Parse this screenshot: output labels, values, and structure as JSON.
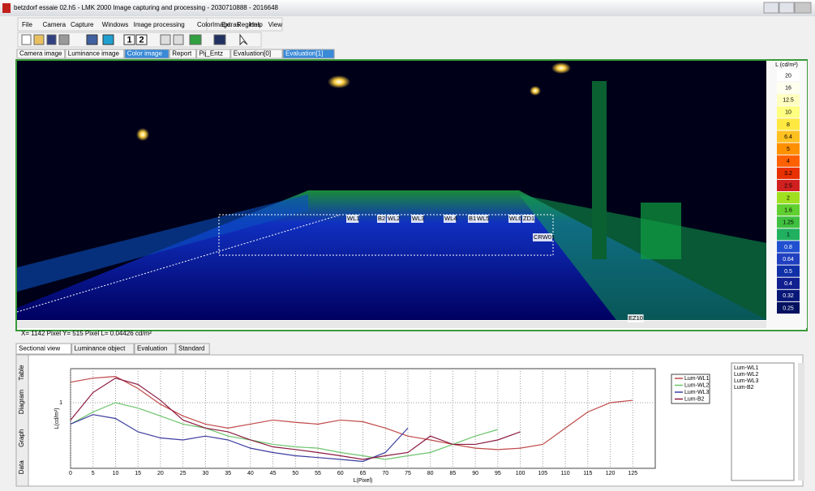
{
  "window": {
    "title": "betzdorf essaie 02.h5 - LMK 2000 Image capturing and processing - 2030710888 - 2016648"
  },
  "menu": [
    "File",
    "Camera",
    "Capture",
    "Windows",
    "Image processing",
    "Color",
    "Extras",
    "Help",
    "Image",
    "Regions",
    "View"
  ],
  "toolbar": {
    "buttons": [
      "1",
      "2"
    ]
  },
  "image_tabs": [
    "Camera image",
    "Luminance image",
    "Color image",
    "Report",
    "Pij_Entz",
    "Evaluation[0]",
    "Evaluation[1]"
  ],
  "image": {
    "region_labels": [
      "WL1",
      "B2",
      "WL2",
      "WL3",
      "WL4",
      "B1",
      "WL5",
      "WL6",
      "ZD1",
      "CRW01",
      "EZ10"
    ]
  },
  "scale": {
    "title": "L (cd/m²)",
    "labels": [
      20,
      16,
      12.5,
      10,
      8,
      6.4,
      5,
      4,
      3.2,
      2.5,
      2,
      1.6,
      1.25,
      1,
      0.8,
      0.64,
      0.5,
      0.4,
      0.32,
      0.25
    ]
  },
  "status": "X= 1142  Pixel  Y= 515 Pixel  L= 0.04426  cd/m²",
  "bottom_tabs": [
    "Sectional view",
    "Luminance object",
    "Evaluation",
    "Standard"
  ],
  "side_tabs": [
    "Table",
    "Diagram",
    "Graph",
    "Data"
  ],
  "chart_data": {
    "type": "line",
    "xlabel": "L(Pixel)",
    "ylabel": "L(cd/m²)",
    "x": [
      0,
      5,
      10,
      15,
      20,
      25,
      30,
      35,
      40,
      45,
      50,
      55,
      60,
      65,
      70,
      75,
      80,
      85,
      90,
      95,
      100,
      105,
      110,
      115,
      120,
      125
    ],
    "xlim": [
      0,
      130
    ],
    "xticks": [
      0,
      5,
      10,
      15,
      20,
      25,
      30,
      35,
      40,
      45,
      50,
      55,
      60,
      65,
      70,
      75,
      80,
      85,
      90,
      95,
      100,
      105,
      110,
      115,
      120,
      125
    ],
    "ylim": [
      0.12,
      3
    ],
    "yticks": [
      1
    ],
    "log_y": true,
    "grid": true,
    "series": [
      {
        "name": "Lum-WL1",
        "color": "#c04848",
        "values": [
          1.94,
          2.21,
          2.33,
          1.58,
          0.95,
          0.65,
          0.5,
          0.44,
          0.5,
          0.57,
          0.53,
          0.5,
          0.57,
          0.54,
          0.44,
          0.34,
          0.3,
          0.26,
          0.23,
          0.22,
          0.23,
          0.26,
          0.44,
          0.74,
          1,
          1.08
        ]
      },
      {
        "name": "Lum-WL2",
        "color": "#6cc46c",
        "values": [
          0.5,
          0.74,
          1,
          0.84,
          0.65,
          0.5,
          0.44,
          0.34,
          0.3,
          0.26,
          0.24,
          0.23,
          0.2,
          0.18,
          0.16,
          0.18,
          0.2,
          0.26,
          0.34,
          0.42,
          null,
          null,
          null,
          null,
          null,
          null
        ]
      },
      {
        "name": "Lum-WL3",
        "color": "#3c3ca0",
        "values": [
          0.5,
          0.68,
          0.6,
          0.39,
          0.32,
          0.3,
          0.34,
          0.3,
          0.23,
          0.2,
          0.18,
          0.17,
          0.16,
          0.15,
          0.2,
          0.44,
          null,
          null,
          null,
          null,
          null,
          null,
          null,
          null,
          null,
          null
        ]
      },
      {
        "name": "Lum-B2",
        "color": "#8b1a40",
        "values": [
          0.57,
          1.39,
          2.21,
          1.8,
          1.08,
          0.57,
          0.44,
          0.39,
          0.3,
          0.24,
          0.22,
          0.2,
          0.18,
          0.16,
          0.18,
          0.2,
          0.34,
          0.26,
          0.26,
          0.3,
          0.39,
          null,
          null,
          null,
          null,
          null
        ]
      }
    ]
  }
}
